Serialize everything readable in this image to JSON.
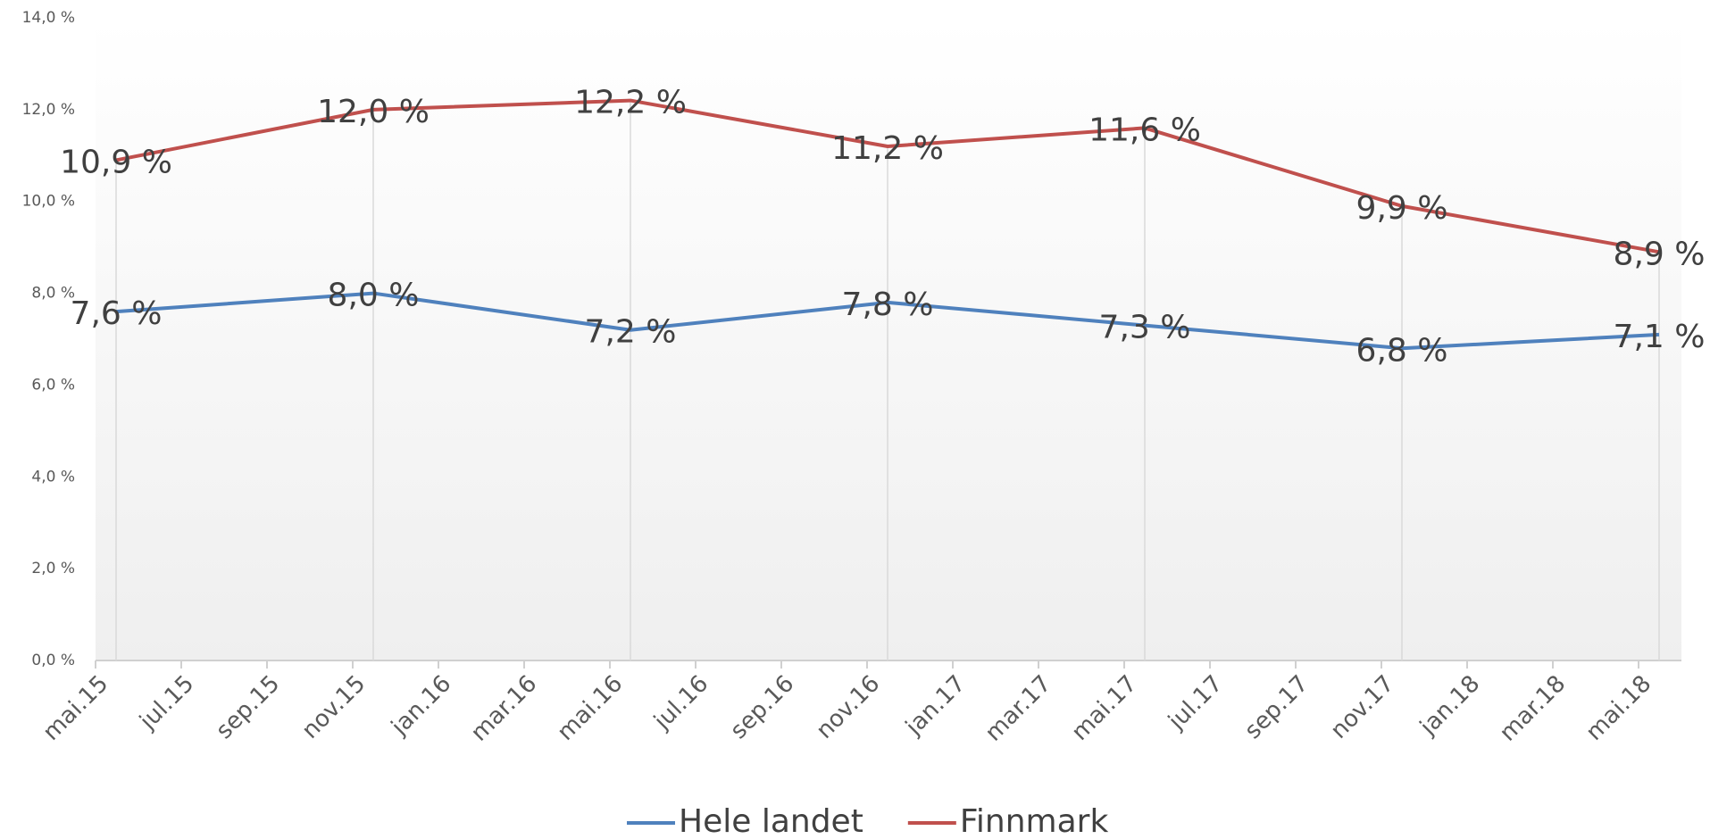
{
  "chart_data": {
    "type": "line",
    "x": [
      "mai.15",
      "nov.15",
      "mai.16",
      "nov.16",
      "mai.17",
      "nov.17",
      "mai.18"
    ],
    "xticks": [
      "mai.15",
      "jul.15",
      "sep.15",
      "nov.15",
      "jan.16",
      "mar.16",
      "mai.16",
      "jul.16",
      "sep.16",
      "nov.16",
      "jan.17",
      "mar.17",
      "mai.17",
      "jul.17",
      "sep.17",
      "nov.17",
      "jan.18",
      "mar.18",
      "mai.18"
    ],
    "ylim": [
      0,
      14
    ],
    "yticks": [
      {
        "value": 0,
        "label": "0,0 %"
      },
      {
        "value": 2,
        "label": "2,0 %"
      },
      {
        "value": 4,
        "label": "4,0 %"
      },
      {
        "value": 6,
        "label": "6,0 %"
      },
      {
        "value": 8,
        "label": "8,0 %"
      },
      {
        "value": 10,
        "label": "10,0 %"
      },
      {
        "value": 12,
        "label": "12,0 %"
      },
      {
        "value": 14,
        "label": "14,0 %"
      }
    ],
    "legend": "bottom",
    "series": [
      {
        "name": "Hele landet",
        "color": "#4f81bd",
        "values": [
          7.6,
          8.0,
          7.2,
          7.8,
          7.3,
          6.8,
          7.1
        ],
        "value_labels": [
          "7,6 %",
          "8,0 %",
          "7,2 %",
          "7,8 %",
          "7,3 %",
          "6,8 %",
          "7,1 %"
        ]
      },
      {
        "name": "Finnmark",
        "color": "#c0504d",
        "values": [
          10.9,
          12.0,
          12.2,
          11.2,
          11.6,
          9.9,
          8.9
        ],
        "value_labels": [
          "10,9 %",
          "12,0 %",
          "12,2 %",
          "11,2 %",
          "11,6 %",
          "9,9 %",
          "8,9 %"
        ]
      }
    ]
  }
}
